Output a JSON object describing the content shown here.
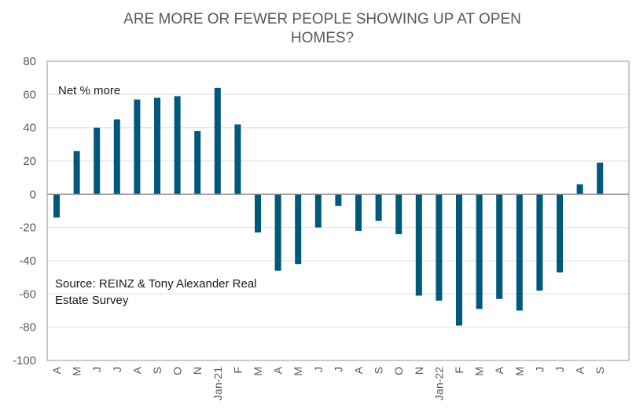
{
  "chart_data": {
    "type": "bar",
    "title_lines": [
      "ARE MORE OR FEWER PEOPLE SHOWING UP AT OPEN",
      "HOMES?"
    ],
    "xlabel": "",
    "ylabel": "",
    "ylim": [
      -100,
      80
    ],
    "yticks": [
      80,
      60,
      40,
      20,
      0,
      -20,
      -40,
      -60,
      -80,
      -100
    ],
    "grid": true,
    "bar_color": "#00587a",
    "annotations": [
      "Net % more",
      "Source: REINZ & Tony Alexander Real",
      "Estate Survey"
    ],
    "categories": [
      "A",
      "M",
      "J",
      "J",
      "A",
      "S",
      "O",
      "N",
      "Jan-21",
      "F",
      "M",
      "A",
      "M",
      "J",
      "J",
      "A",
      "S",
      "O",
      "N",
      "Jan-22",
      "F",
      "M",
      "A",
      "M",
      "J",
      "J",
      "A",
      "S"
    ],
    "values": [
      -14,
      26,
      40,
      45,
      57,
      58,
      59,
      38,
      64,
      42,
      -23,
      -46,
      -42,
      -20,
      -7,
      -22,
      -16,
      -24,
      -61,
      -64,
      -79,
      -69,
      -63,
      -70,
      -58,
      -47,
      6,
      19
    ]
  }
}
